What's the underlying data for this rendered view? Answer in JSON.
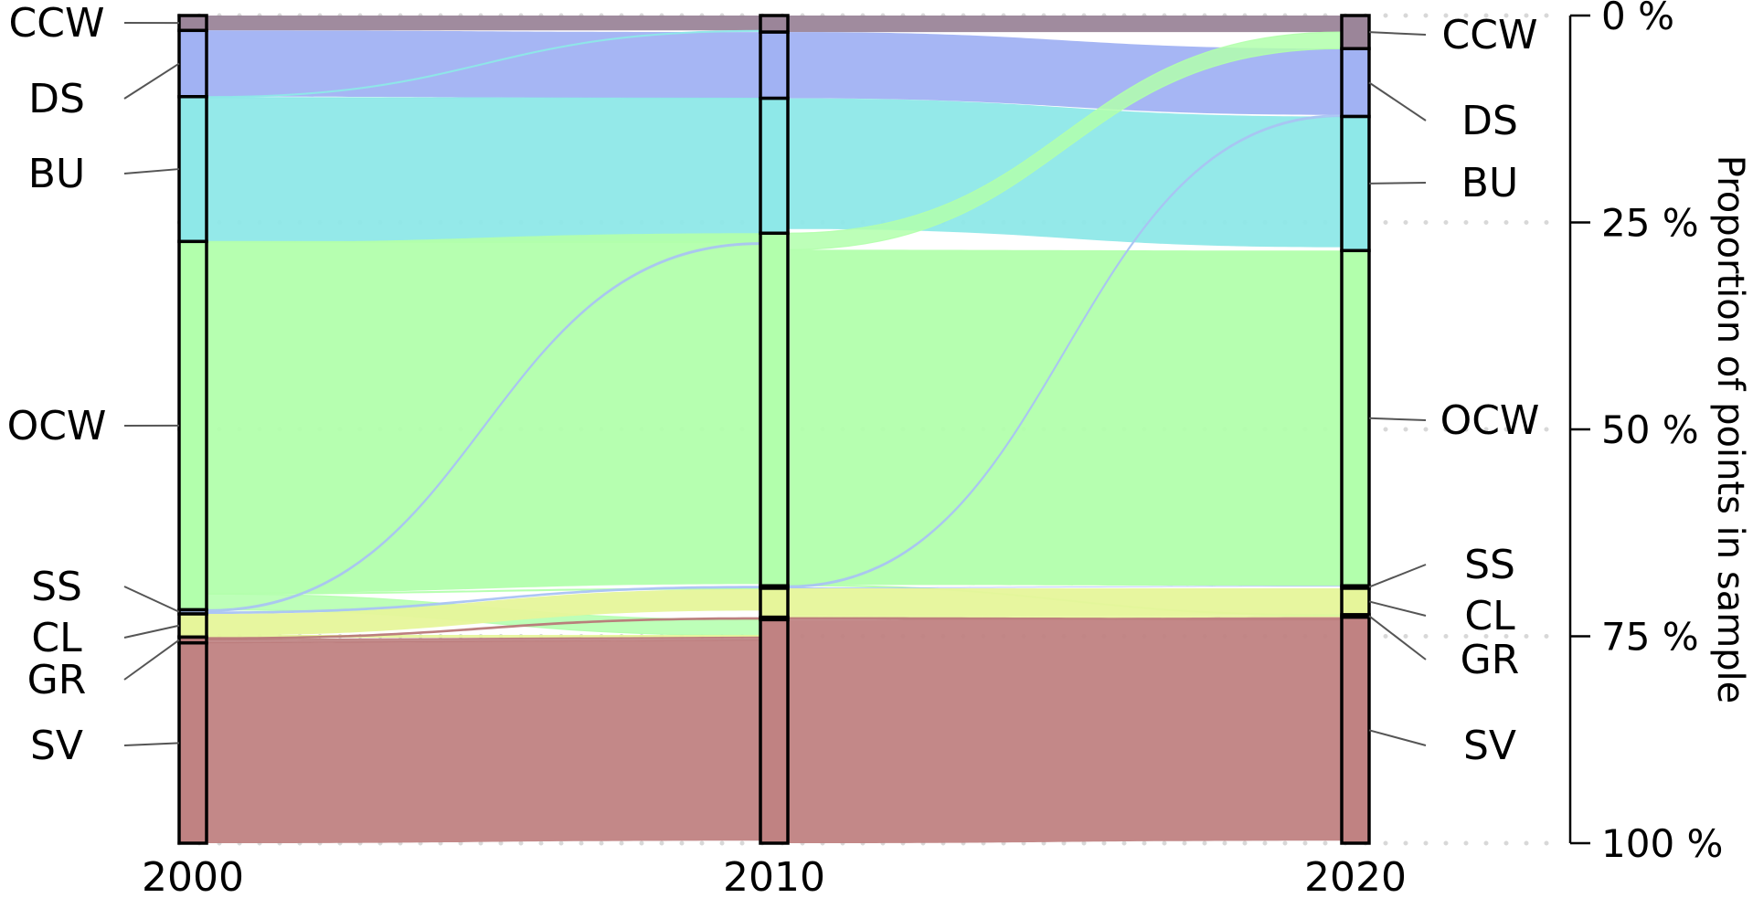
{
  "chart_data": {
    "type": "alluvial",
    "title": "",
    "ylabel": "Proportion of points in sample",
    "ylim": [
      0,
      100
    ],
    "yticks": [
      {
        "value": 0,
        "label": "0 %"
      },
      {
        "value": 25,
        "label": "25 %"
      },
      {
        "value": 50,
        "label": "50 %"
      },
      {
        "value": 75,
        "label": "75 %"
      },
      {
        "value": 100,
        "label": "100 %"
      }
    ],
    "grid": "dotted horizontal",
    "categories": [
      "CCW",
      "DS",
      "BU",
      "OCW",
      "SS",
      "CL",
      "GR",
      "SV"
    ],
    "colors": {
      "CCW": "#9B8599",
      "DS": "#A1B2F3",
      "BU": "#8EE8E8",
      "OCW": "#B2FFAC",
      "SS": "#A9C3F3",
      "CL": "#E6F59A",
      "GR": "#B87878",
      "SV": "#C08282"
    },
    "years": [
      {
        "label": "2000",
        "values": {
          "CCW": 1.8,
          "DS": 8.0,
          "BU": 17.5,
          "OCW": 44.5,
          "SS": 0.5,
          "CL": 2.8,
          "GR": 0.7,
          "SV": 24.2
        }
      },
      {
        "label": "2010",
        "values": {
          "CCW": 2.0,
          "DS": 8.0,
          "BU": 16.3,
          "OCW": 42.6,
          "SS": 0.3,
          "CL": 3.5,
          "GR": 0.3,
          "SV": 27.0
        }
      },
      {
        "label": "2020",
        "values": {
          "CCW": 4.0,
          "DS": 8.2,
          "BU": 16.2,
          "OCW": 40.5,
          "SS": 0.3,
          "CL": 3.2,
          "GR": 0.3,
          "SV": 27.3
        }
      }
    ],
    "flows_2000_2010": [
      {
        "from": "CCW",
        "to": "CCW",
        "value": 1.8
      },
      {
        "from": "DS",
        "to": "DS",
        "value": 8.0
      },
      {
        "from": "BU",
        "to": "CCW",
        "value": 0.1
      },
      {
        "from": "BU",
        "to": "DS",
        "value": 0.05
      },
      {
        "from": "BU",
        "to": "BU",
        "value": 17.35
      },
      {
        "from": "OCW",
        "to": "BU",
        "value": 0.1
      },
      {
        "from": "OCW",
        "to": "OCW",
        "value": 42.4
      },
      {
        "from": "OCW",
        "to": "SV",
        "value": 1.9
      },
      {
        "from": "OCW",
        "to": "CL",
        "value": 0.1
      },
      {
        "from": "SS",
        "to": "SS",
        "value": 0.3
      },
      {
        "from": "SS",
        "to": "BU",
        "value": 0.2
      },
      {
        "from": "CL",
        "to": "CL",
        "value": 2.6
      },
      {
        "from": "CL",
        "to": "SV",
        "value": 0.2
      },
      {
        "from": "GR",
        "to": "GR",
        "value": 0.3
      },
      {
        "from": "GR",
        "to": "SV",
        "value": 0.4
      },
      {
        "from": "SV",
        "to": "SV",
        "value": 24.2
      }
    ],
    "flows_2010_2020": [
      {
        "from": "CCW",
        "to": "CCW",
        "value": 2.0
      },
      {
        "from": "DS",
        "to": "DS",
        "value": 8.0
      },
      {
        "from": "BU",
        "to": "BU",
        "value": 15.8
      },
      {
        "from": "OCW",
        "to": "CCW",
        "value": 2.0
      },
      {
        "from": "OCW",
        "to": "OCW",
        "value": 40.5
      },
      {
        "from": "OCW",
        "to": "GR",
        "value": 0.1
      },
      {
        "from": "SS",
        "to": "SS",
        "value": 0.1
      },
      {
        "from": "SS",
        "to": "DS",
        "value": 0.2
      },
      {
        "from": "CL",
        "to": "CL",
        "value": 3.2
      },
      {
        "from": "CL",
        "to": "GR",
        "value": 0.3
      },
      {
        "from": "GR",
        "to": "GR",
        "value": 0.3
      },
      {
        "from": "SV",
        "to": "SV",
        "value": 27.0
      }
    ]
  }
}
